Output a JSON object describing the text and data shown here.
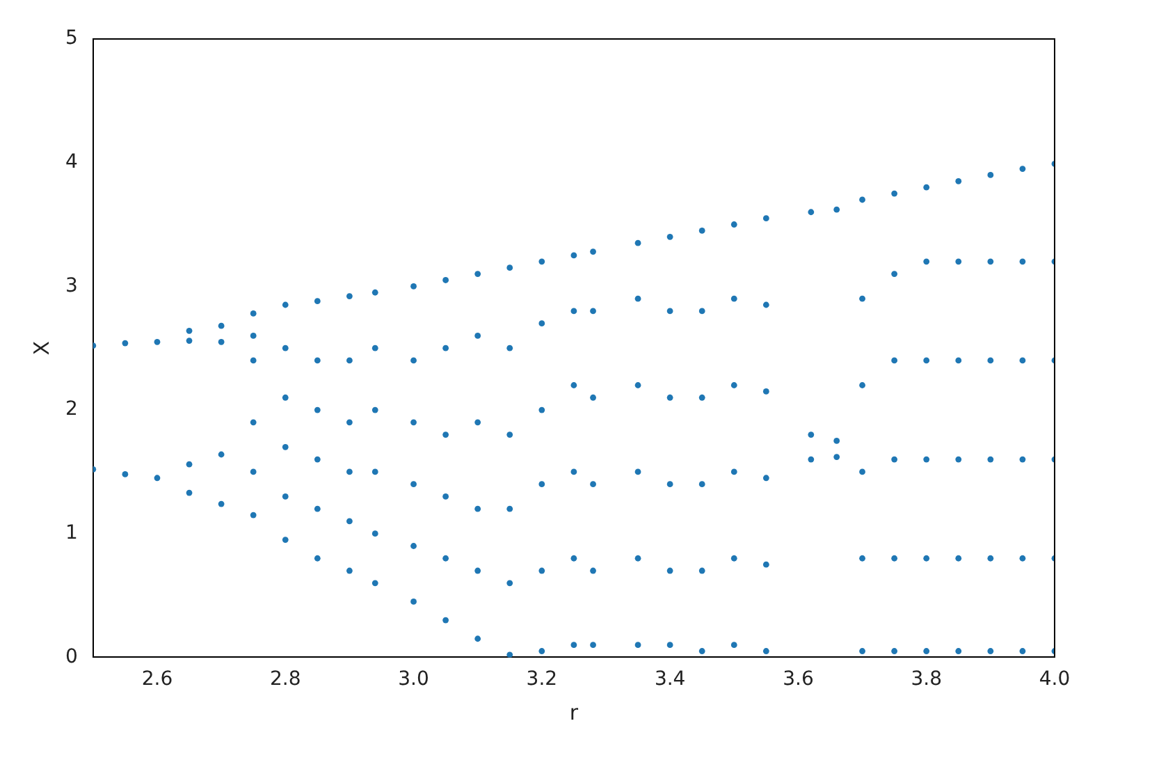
{
  "chart_data": {
    "type": "scatter",
    "xlabel": "r",
    "ylabel": "X",
    "xlim": [
      2.5,
      4.0
    ],
    "xticks": [
      2.6,
      2.8,
      {
        "value": 3,
        "label": "3.0"
      },
      3.2,
      3.4,
      3.6,
      3.8,
      {
        "value": 4,
        "label": "4.0"
      }
    ],
    "ylim": [
      0,
      5
    ],
    "yticks": [
      0,
      1,
      2,
      3,
      4,
      5
    ],
    "grid": false,
    "legend": false,
    "marker": "circle",
    "series": [
      {
        "color": "#1f77b4",
        "x": [
          2.5,
          2.5,
          2.55,
          2.55,
          2.6,
          2.6,
          2.65,
          2.65,
          2.65,
          2.65,
          2.7,
          2.7,
          2.7,
          2.7,
          2.75,
          2.75,
          2.75,
          2.75,
          2.75,
          2.75,
          2.8,
          2.8,
          2.8,
          2.8,
          2.8,
          2.8,
          2.85,
          2.85,
          2.85,
          2.85,
          2.85,
          2.85,
          2.9,
          2.9,
          2.9,
          2.9,
          2.9,
          2.9,
          2.94,
          2.94,
          2.94,
          2.94,
          2.94,
          2.94,
          3.0,
          3.0,
          3.0,
          3.0,
          3.0,
          3.0,
          3.05,
          3.05,
          3.05,
          3.05,
          3.05,
          3.05,
          3.1,
          3.1,
          3.1,
          3.1,
          3.1,
          3.1,
          3.15,
          3.15,
          3.15,
          3.15,
          3.15,
          3.15,
          3.2,
          3.2,
          3.2,
          3.2,
          3.2,
          3.2,
          3.25,
          3.25,
          3.25,
          3.25,
          3.25,
          3.25,
          3.28,
          3.28,
          3.28,
          3.28,
          3.28,
          3.28,
          3.35,
          3.35,
          3.35,
          3.35,
          3.35,
          3.35,
          3.4,
          3.4,
          3.4,
          3.4,
          3.4,
          3.4,
          3.45,
          3.45,
          3.45,
          3.45,
          3.45,
          3.45,
          3.5,
          3.5,
          3.5,
          3.5,
          3.5,
          3.5,
          3.55,
          3.55,
          3.55,
          3.55,
          3.55,
          3.55,
          3.62,
          3.62,
          3.62,
          3.66,
          3.66,
          3.66,
          3.7,
          3.7,
          3.7,
          3.7,
          3.7,
          3.7,
          3.75,
          3.75,
          3.75,
          3.75,
          3.75,
          3.75,
          3.8,
          3.8,
          3.8,
          3.8,
          3.8,
          3.8,
          3.85,
          3.85,
          3.85,
          3.85,
          3.85,
          3.85,
          3.9,
          3.9,
          3.9,
          3.9,
          3.9,
          3.9,
          3.95,
          3.95,
          3.95,
          3.95,
          3.95,
          3.95,
          4.0,
          4.0,
          4.0,
          4.0,
          4.0,
          4.0
        ],
        "values": [
          2.52,
          1.52,
          2.54,
          1.48,
          2.55,
          1.45,
          2.64,
          2.56,
          1.56,
          1.33,
          2.68,
          2.55,
          1.64,
          1.24,
          1.15,
          1.5,
          1.9,
          2.4,
          2.6,
          2.78,
          0.95,
          1.3,
          1.7,
          2.1,
          2.5,
          2.85,
          0.8,
          1.2,
          1.6,
          2.0,
          2.4,
          2.88,
          0.7,
          1.1,
          1.5,
          1.9,
          2.4,
          2.92,
          0.6,
          1.0,
          1.5,
          2.0,
          2.5,
          2.95,
          0.45,
          0.9,
          1.4,
          1.9,
          2.4,
          3.0,
          0.3,
          0.8,
          1.3,
          1.8,
          2.5,
          3.05,
          0.15,
          0.7,
          1.2,
          1.9,
          2.6,
          3.1,
          0.02,
          0.6,
          1.2,
          1.8,
          2.5,
          3.15,
          0.05,
          0.7,
          1.4,
          2.0,
          2.7,
          3.2,
          0.1,
          0.8,
          1.5,
          2.2,
          2.8,
          3.25,
          0.1,
          0.7,
          1.4,
          2.1,
          2.8,
          3.28,
          0.1,
          0.8,
          1.5,
          2.2,
          2.9,
          3.35,
          0.1,
          0.7,
          1.4,
          2.1,
          2.8,
          3.4,
          0.05,
          0.7,
          1.4,
          2.1,
          2.8,
          3.45,
          0.1,
          0.8,
          1.5,
          2.2,
          2.9,
          3.5,
          0.05,
          0.75,
          1.45,
          2.15,
          2.85,
          3.55,
          3.6,
          1.8,
          1.6,
          3.62,
          1.75,
          1.62,
          0.05,
          0.8,
          1.5,
          2.2,
          2.9,
          3.7,
          0.05,
          0.8,
          1.6,
          2.4,
          3.1,
          3.75,
          0.05,
          0.8,
          1.6,
          2.4,
          3.2,
          3.8,
          0.05,
          0.8,
          1.6,
          2.4,
          3.2,
          3.85,
          0.05,
          0.8,
          1.6,
          2.4,
          3.2,
          3.9,
          0.05,
          0.8,
          1.6,
          2.4,
          3.2,
          3.95,
          0.05,
          0.8,
          1.6,
          2.4,
          3.2,
          3.99
        ]
      }
    ]
  }
}
